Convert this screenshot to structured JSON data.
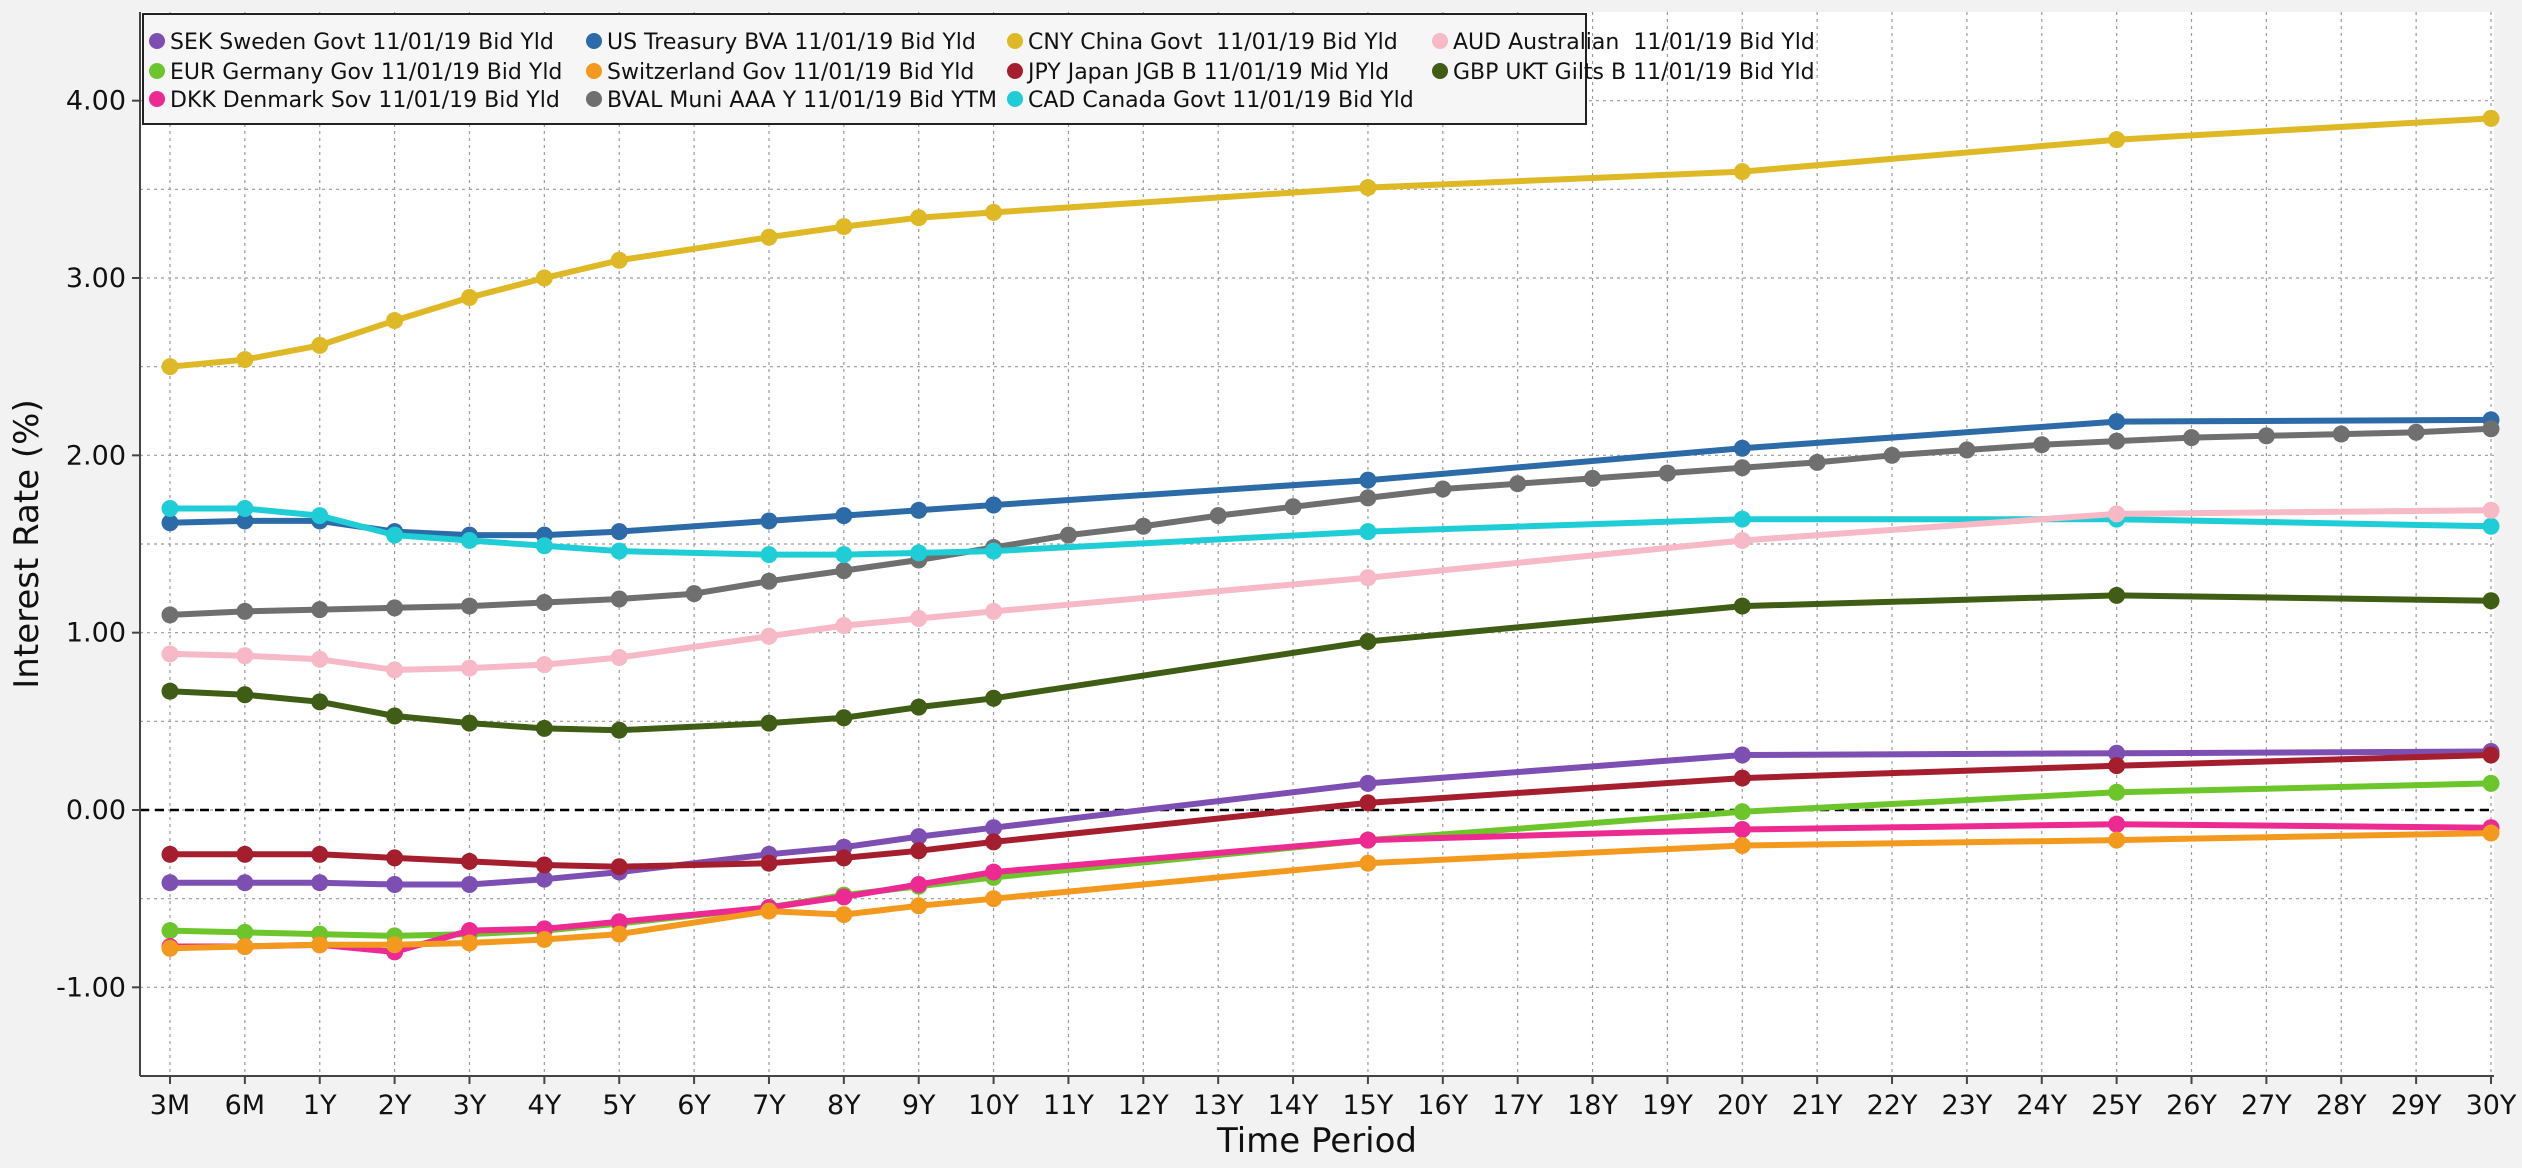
{
  "chart_data": {
    "type": "line",
    "xlabel": "Time Period",
    "ylabel": "Interest Rate (%)",
    "ylim": [
      -1.5,
      4.5
    ],
    "yticks": [
      -1.0,
      0.0,
      1.0,
      2.0,
      3.0,
      4.0
    ],
    "ytick_labels": [
      "-1.00",
      "0.00",
      "1.00",
      "2.00",
      "3.00",
      "4.00"
    ],
    "reference_line": 0.0,
    "grid": true,
    "legend_position": "top-left",
    "categories": [
      "3M",
      "6M",
      "1Y",
      "2Y",
      "3Y",
      "4Y",
      "5Y",
      "6Y",
      "7Y",
      "8Y",
      "9Y",
      "10Y",
      "11Y",
      "12Y",
      "13Y",
      "14Y",
      "15Y",
      "16Y",
      "17Y",
      "18Y",
      "19Y",
      "20Y",
      "21Y",
      "22Y",
      "23Y",
      "24Y",
      "25Y",
      "26Y",
      "27Y",
      "28Y",
      "29Y",
      "30Y"
    ],
    "series": [
      {
        "name": "SEK Sweden Govt 11/01/19 Bid Yld",
        "color": "#7e4fb3",
        "x": [
          "3M",
          "6M",
          "1Y",
          "2Y",
          "3Y",
          "4Y",
          "5Y",
          "7Y",
          "8Y",
          "9Y",
          "10Y",
          "15Y",
          "20Y",
          "25Y",
          "30Y"
        ],
        "values": [
          -0.41,
          -0.41,
          -0.41,
          -0.42,
          -0.42,
          -0.39,
          -0.35,
          -0.25,
          -0.21,
          -0.15,
          -0.1,
          0.15,
          0.31,
          0.32,
          0.33
        ]
      },
      {
        "name": "EUR Germany Gov 11/01/19 Bid Yld",
        "color": "#6cc62b",
        "x": [
          "3M",
          "6M",
          "1Y",
          "2Y",
          "3Y",
          "4Y",
          "5Y",
          "7Y",
          "8Y",
          "9Y",
          "10Y",
          "15Y",
          "20Y",
          "25Y",
          "30Y"
        ],
        "values": [
          -0.68,
          -0.69,
          -0.7,
          -0.71,
          -0.7,
          -0.68,
          -0.64,
          -0.55,
          -0.48,
          -0.43,
          -0.38,
          -0.17,
          -0.01,
          0.1,
          0.15
        ]
      },
      {
        "name": "DKK Denmark Sov 11/01/19 Bid Yld",
        "color": "#ec2a92",
        "x": [
          "3M",
          "6M",
          "1Y",
          "2Y",
          "3Y",
          "4Y",
          "5Y",
          "7Y",
          "8Y",
          "9Y",
          "10Y",
          "15Y",
          "20Y",
          "25Y",
          "30Y"
        ],
        "values": [
          -0.77,
          -0.77,
          -0.76,
          -0.8,
          -0.68,
          -0.67,
          -0.63,
          -0.55,
          -0.49,
          -0.42,
          -0.35,
          -0.17,
          -0.11,
          -0.08,
          -0.1
        ]
      },
      {
        "name": "US Treasury BVA 11/01/19 Bid Yld",
        "color": "#2c6aa8",
        "x": [
          "3M",
          "6M",
          "1Y",
          "2Y",
          "3Y",
          "4Y",
          "5Y",
          "7Y",
          "8Y",
          "9Y",
          "10Y",
          "15Y",
          "20Y",
          "25Y",
          "30Y"
        ],
        "values": [
          1.62,
          1.63,
          1.63,
          1.57,
          1.55,
          1.55,
          1.57,
          1.63,
          1.66,
          1.69,
          1.72,
          1.86,
          2.04,
          2.19,
          2.2
        ]
      },
      {
        "name": "Switzerland Gov 11/01/19 Bid Yld",
        "color": "#f39a1e",
        "x": [
          "3M",
          "6M",
          "1Y",
          "2Y",
          "3Y",
          "4Y",
          "5Y",
          "7Y",
          "8Y",
          "9Y",
          "10Y",
          "15Y",
          "20Y",
          "25Y",
          "30Y"
        ],
        "values": [
          -0.78,
          -0.77,
          -0.76,
          -0.76,
          -0.75,
          -0.73,
          -0.7,
          -0.57,
          -0.59,
          -0.54,
          -0.5,
          -0.3,
          -0.2,
          -0.17,
          -0.13
        ]
      },
      {
        "name": "BVAL Muni AAA Y 11/01/19 Bid YTM",
        "color": "#6f6f6f",
        "x": [
          "3M",
          "6M",
          "1Y",
          "2Y",
          "3Y",
          "4Y",
          "5Y",
          "6Y",
          "7Y",
          "8Y",
          "9Y",
          "10Y",
          "11Y",
          "12Y",
          "13Y",
          "14Y",
          "15Y",
          "16Y",
          "17Y",
          "18Y",
          "19Y",
          "20Y",
          "21Y",
          "22Y",
          "23Y",
          "24Y",
          "25Y",
          "26Y",
          "27Y",
          "28Y",
          "29Y",
          "30Y"
        ],
        "values": [
          1.1,
          1.12,
          1.13,
          1.14,
          1.15,
          1.17,
          1.19,
          1.22,
          1.29,
          1.35,
          1.41,
          1.48,
          1.55,
          1.6,
          1.66,
          1.71,
          1.76,
          1.81,
          1.84,
          1.87,
          1.9,
          1.93,
          1.96,
          2.0,
          2.03,
          2.06,
          2.08,
          2.1,
          2.11,
          2.12,
          2.13,
          2.15
        ]
      },
      {
        "name": "CNY China Govt  11/01/19 Bid Yld",
        "color": "#dfb826",
        "x": [
          "3M",
          "6M",
          "1Y",
          "2Y",
          "3Y",
          "4Y",
          "5Y",
          "7Y",
          "8Y",
          "9Y",
          "10Y",
          "15Y",
          "20Y",
          "25Y",
          "30Y"
        ],
        "values": [
          2.5,
          2.54,
          2.62,
          2.76,
          2.89,
          3.0,
          3.1,
          3.23,
          3.29,
          3.34,
          3.37,
          3.51,
          3.6,
          3.78,
          3.9
        ]
      },
      {
        "name": "JPY Japan JGB B 11/01/19 Mid Yld",
        "color": "#a51e2e",
        "x": [
          "3M",
          "6M",
          "1Y",
          "2Y",
          "3Y",
          "4Y",
          "5Y",
          "7Y",
          "8Y",
          "9Y",
          "10Y",
          "15Y",
          "20Y",
          "25Y",
          "30Y"
        ],
        "values": [
          -0.25,
          -0.25,
          -0.25,
          -0.27,
          -0.29,
          -0.31,
          -0.32,
          -0.3,
          -0.27,
          -0.23,
          -0.18,
          0.04,
          0.18,
          0.25,
          0.31
        ]
      },
      {
        "name": "CAD Canada Govt 11/01/19 Bid Yld",
        "color": "#1fcdd6",
        "x": [
          "3M",
          "6M",
          "1Y",
          "2Y",
          "3Y",
          "4Y",
          "5Y",
          "7Y",
          "8Y",
          "9Y",
          "10Y",
          "15Y",
          "20Y",
          "25Y",
          "30Y"
        ],
        "values": [
          1.7,
          1.7,
          1.66,
          1.55,
          1.52,
          1.49,
          1.46,
          1.44,
          1.44,
          1.45,
          1.46,
          1.57,
          1.64,
          1.64,
          1.6
        ]
      },
      {
        "name": "AUD Australian  11/01/19 Bid Yld",
        "color": "#f6b9c5",
        "x": [
          "3M",
          "6M",
          "1Y",
          "2Y",
          "3Y",
          "4Y",
          "5Y",
          "7Y",
          "8Y",
          "9Y",
          "10Y",
          "15Y",
          "20Y",
          "25Y",
          "30Y"
        ],
        "values": [
          0.88,
          0.87,
          0.85,
          0.79,
          0.8,
          0.82,
          0.86,
          0.98,
          1.04,
          1.08,
          1.12,
          1.31,
          1.52,
          1.67,
          1.69
        ]
      },
      {
        "name": "GBP UKT Gilts B 11/01/19 Bid Yld",
        "color": "#3f5d14",
        "x": [
          "3M",
          "6M",
          "1Y",
          "2Y",
          "3Y",
          "4Y",
          "5Y",
          "7Y",
          "8Y",
          "9Y",
          "10Y",
          "15Y",
          "20Y",
          "25Y",
          "30Y"
        ],
        "values": [
          0.67,
          0.65,
          0.61,
          0.53,
          0.49,
          0.46,
          0.45,
          0.49,
          0.52,
          0.58,
          0.63,
          0.95,
          1.15,
          1.21,
          1.18
        ]
      }
    ]
  }
}
